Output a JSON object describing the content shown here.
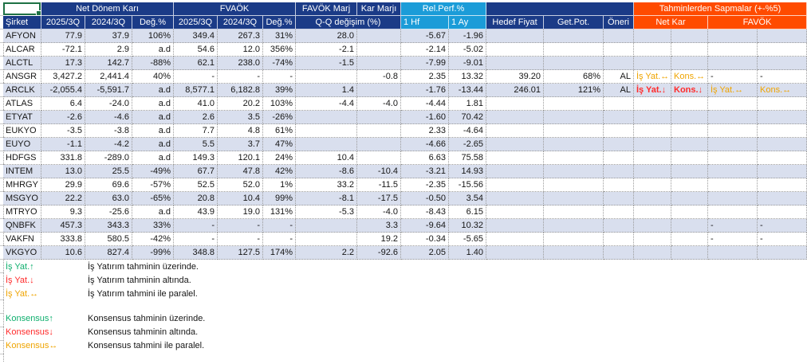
{
  "colors": {
    "navy": "#1b3b87",
    "cyan": "#1b9cd8",
    "orange": "#ff4b00",
    "band": "#d9dfee",
    "green": "#0faf6e",
    "red": "#ff2b2b",
    "gold": "#efa400",
    "selection": "#1e7145"
  },
  "table": {
    "headers": {
      "sirket": "Şirket",
      "group_net": "Net Dönem Karı",
      "group_fvaok": "FVAÖK",
      "favok_marj": "FAVÖK Marj",
      "kar_marji": "Kar Marjı",
      "qq_degisim": "Q-Q değişim (%)",
      "rel_perf": "Rel.Perf.%",
      "hf1": "1 Hf",
      "ay1": "1 Ay",
      "hedef_fiyat": "Hedef Fiyat",
      "get_pot": "Get.Pot.",
      "oneri": "Öneri",
      "tahmin_group": "Tahminlerden Sapmalar (+-%5)",
      "net_kar": "Net Kar",
      "favok": "FAVÖK",
      "q2025": "2025/3Q",
      "q2024": "2024/3Q",
      "deg": "Değ.%"
    },
    "rows": [
      {
        "sirket": "AFYON",
        "nk_2025": "77.9",
        "nk_2024": "37.9",
        "nk_deg": "106%",
        "fv_2025": "349.4",
        "fv_2024": "267.3",
        "fv_deg": "31%",
        "favok_marj": "28.0",
        "kar_marji": "",
        "hf1": "-5.67",
        "ay1": "-1.96",
        "hedef": "",
        "getpot": "",
        "oneri": "",
        "dev": [
          "",
          "",
          "",
          ""
        ]
      },
      {
        "sirket": "ALCAR",
        "nk_2025": "-72.1",
        "nk_2024": "2.9",
        "nk_deg": "a.d",
        "fv_2025": "54.6",
        "fv_2024": "12.0",
        "fv_deg": "356%",
        "favok_marj": "-2.1",
        "kar_marji": "",
        "hf1": "-2.14",
        "ay1": "-5.02",
        "hedef": "",
        "getpot": "",
        "oneri": "",
        "dev": [
          "",
          "",
          "",
          ""
        ]
      },
      {
        "sirket": "ALCTL",
        "nk_2025": "17.3",
        "nk_2024": "142.7",
        "nk_deg": "-88%",
        "fv_2025": "62.1",
        "fv_2024": "238.0",
        "fv_deg": "-74%",
        "favok_marj": "-1.5",
        "kar_marji": "",
        "hf1": "-7.99",
        "ay1": "-9.01",
        "hedef": "",
        "getpot": "",
        "oneri": "",
        "dev": [
          "",
          "",
          "",
          ""
        ]
      },
      {
        "sirket": "ANSGR",
        "nk_2025": "3,427.2",
        "nk_2024": "2,441.4",
        "nk_deg": "40%",
        "fv_2025": "-",
        "fv_2024": "-",
        "fv_deg": "-",
        "favok_marj": "",
        "kar_marji": "-0.8",
        "hf1": "2.35",
        "ay1": "13.32",
        "hedef": "39.20",
        "getpot": "68%",
        "oneri": "AL",
        "dev": [
          {
            "t": "İş Yat.↔",
            "c": "orange"
          },
          {
            "t": "Kons.↔",
            "c": "orange"
          },
          {
            "t": "-",
            "c": "dark"
          },
          {
            "t": "-",
            "c": "dark"
          }
        ]
      },
      {
        "sirket": "ARCLK",
        "nk_2025": "-2,055.4",
        "nk_2024": "-5,591.7",
        "nk_deg": "a.d",
        "fv_2025": "8,577.1",
        "fv_2024": "6,182.8",
        "fv_deg": "39%",
        "favok_marj": "1.4",
        "kar_marji": "",
        "hf1": "-1.76",
        "ay1": "-13.44",
        "hedef": "246.01",
        "getpot": "121%",
        "oneri": "AL",
        "dev": [
          {
            "t": "İş Yat.↓",
            "c": "red"
          },
          {
            "t": "Kons.↓",
            "c": "red"
          },
          {
            "t": "İş Yat.↔",
            "c": "orange"
          },
          {
            "t": "Kons.↔",
            "c": "orange"
          }
        ]
      },
      {
        "sirket": "ATLAS",
        "nk_2025": "6.4",
        "nk_2024": "-24.0",
        "nk_deg": "a.d",
        "fv_2025": "41.0",
        "fv_2024": "20.2",
        "fv_deg": "103%",
        "favok_marj": "-4.4",
        "kar_marji": "-4.0",
        "hf1": "-4.44",
        "ay1": "1.81",
        "hedef": "",
        "getpot": "",
        "oneri": "",
        "dev": [
          "",
          "",
          "",
          ""
        ]
      },
      {
        "sirket": "ETYAT",
        "nk_2025": "-2.6",
        "nk_2024": "-4.6",
        "nk_deg": "a.d",
        "fv_2025": "2.6",
        "fv_2024": "3.5",
        "fv_deg": "-26%",
        "favok_marj": "",
        "kar_marji": "",
        "hf1": "-1.60",
        "ay1": "70.42",
        "hedef": "",
        "getpot": "",
        "oneri": "",
        "dev": [
          "",
          "",
          "",
          ""
        ]
      },
      {
        "sirket": "EUKYO",
        "nk_2025": "-3.5",
        "nk_2024": "-3.8",
        "nk_deg": "a.d",
        "fv_2025": "7.7",
        "fv_2024": "4.8",
        "fv_deg": "61%",
        "favok_marj": "",
        "kar_marji": "",
        "hf1": "2.33",
        "ay1": "-4.64",
        "hedef": "",
        "getpot": "",
        "oneri": "",
        "dev": [
          "",
          "",
          "",
          ""
        ]
      },
      {
        "sirket": "EUYO",
        "nk_2025": "-1.1",
        "nk_2024": "-4.2",
        "nk_deg": "a.d",
        "fv_2025": "5.5",
        "fv_2024": "3.7",
        "fv_deg": "47%",
        "favok_marj": "",
        "kar_marji": "",
        "hf1": "-4.66",
        "ay1": "-2.65",
        "hedef": "",
        "getpot": "",
        "oneri": "",
        "dev": [
          "",
          "",
          "",
          ""
        ]
      },
      {
        "sirket": "HDFGS",
        "nk_2025": "331.8",
        "nk_2024": "-289.0",
        "nk_deg": "a.d",
        "fv_2025": "149.3",
        "fv_2024": "120.1",
        "fv_deg": "24%",
        "favok_marj": "10.4",
        "kar_marji": "",
        "hf1": "6.63",
        "ay1": "75.58",
        "hedef": "",
        "getpot": "",
        "oneri": "",
        "dev": [
          "",
          "",
          "",
          ""
        ]
      },
      {
        "sirket": "INTEM",
        "nk_2025": "13.0",
        "nk_2024": "25.5",
        "nk_deg": "-49%",
        "fv_2025": "67.7",
        "fv_2024": "47.8",
        "fv_deg": "42%",
        "favok_marj": "-8.6",
        "kar_marji": "-10.4",
        "hf1": "-3.21",
        "ay1": "14.93",
        "hedef": "",
        "getpot": "",
        "oneri": "",
        "dev": [
          "",
          "",
          "",
          ""
        ]
      },
      {
        "sirket": "MHRGY",
        "nk_2025": "29.9",
        "nk_2024": "69.6",
        "nk_deg": "-57%",
        "fv_2025": "52.5",
        "fv_2024": "52.0",
        "fv_deg": "1%",
        "favok_marj": "33.2",
        "kar_marji": "-11.5",
        "hf1": "-2.35",
        "ay1": "-15.56",
        "hedef": "",
        "getpot": "",
        "oneri": "",
        "dev": [
          "",
          "",
          "",
          ""
        ]
      },
      {
        "sirket": "MSGYO",
        "nk_2025": "22.2",
        "nk_2024": "63.0",
        "nk_deg": "-65%",
        "fv_2025": "20.8",
        "fv_2024": "10.4",
        "fv_deg": "99%",
        "favok_marj": "-8.1",
        "kar_marji": "-17.5",
        "hf1": "-0.50",
        "ay1": "3.54",
        "hedef": "",
        "getpot": "",
        "oneri": "",
        "dev": [
          "",
          "",
          "",
          ""
        ]
      },
      {
        "sirket": "MTRYO",
        "nk_2025": "9.3",
        "nk_2024": "-25.6",
        "nk_deg": "a.d",
        "fv_2025": "43.9",
        "fv_2024": "19.0",
        "fv_deg": "131%",
        "favok_marj": "-5.3",
        "kar_marji": "-4.0",
        "hf1": "-8.43",
        "ay1": "6.15",
        "hedef": "",
        "getpot": "",
        "oneri": "",
        "dev": [
          "",
          "",
          "",
          ""
        ]
      },
      {
        "sirket": "QNBFK",
        "nk_2025": "457.3",
        "nk_2024": "343.3",
        "nk_deg": "33%",
        "fv_2025": "-",
        "fv_2024": "-",
        "fv_deg": "-",
        "favok_marj": "",
        "kar_marji": "3.3",
        "hf1": "-9.64",
        "ay1": "10.32",
        "hedef": "",
        "getpot": "",
        "oneri": "",
        "dev": [
          "",
          "",
          {
            "t": "-",
            "c": "dark"
          },
          {
            "t": "-",
            "c": "dark"
          }
        ]
      },
      {
        "sirket": "VAKFN",
        "nk_2025": "333.8",
        "nk_2024": "580.5",
        "nk_deg": "-42%",
        "fv_2025": "-",
        "fv_2024": "-",
        "fv_deg": "-",
        "favok_marj": "",
        "kar_marji": "19.2",
        "hf1": "-0.34",
        "ay1": "-5.65",
        "hedef": "",
        "getpot": "",
        "oneri": "",
        "dev": [
          "",
          "",
          {
            "t": "-",
            "c": "dark"
          },
          {
            "t": "-",
            "c": "dark"
          }
        ]
      },
      {
        "sirket": "VKGYO",
        "nk_2025": "10.6",
        "nk_2024": "827.4",
        "nk_deg": "-99%",
        "fv_2025": "348.8",
        "fv_2024": "127.5",
        "fv_deg": "174%",
        "favok_marj": "2.2",
        "kar_marji": "-92.6",
        "hf1": "2.05",
        "ay1": "1.40",
        "hedef": "",
        "getpot": "",
        "oneri": "",
        "dev": [
          "",
          "",
          "",
          ""
        ]
      }
    ]
  },
  "legend": {
    "is_yat": [
      {
        "label": "İş Yat.↑",
        "color": "green",
        "desc": "İş Yatırım tahminin üzerinde."
      },
      {
        "label": "İş Yat.↓",
        "color": "red",
        "desc": "İş Yatırım tahminin altında."
      },
      {
        "label": "İş Yat.↔",
        "color": "orange",
        "desc": "İş Yatırım tahmini ile paralel."
      }
    ],
    "konsensus": [
      {
        "label": "Konsensus↑",
        "color": "green",
        "desc": "Konsensus tahminin üzerinde."
      },
      {
        "label": "Konsensus↓",
        "color": "red",
        "desc": "Konsensus tahminin altında."
      },
      {
        "label": "Konsensus↔",
        "color": "orange",
        "desc": "Konsensus tahmini ile paralel."
      }
    ]
  }
}
